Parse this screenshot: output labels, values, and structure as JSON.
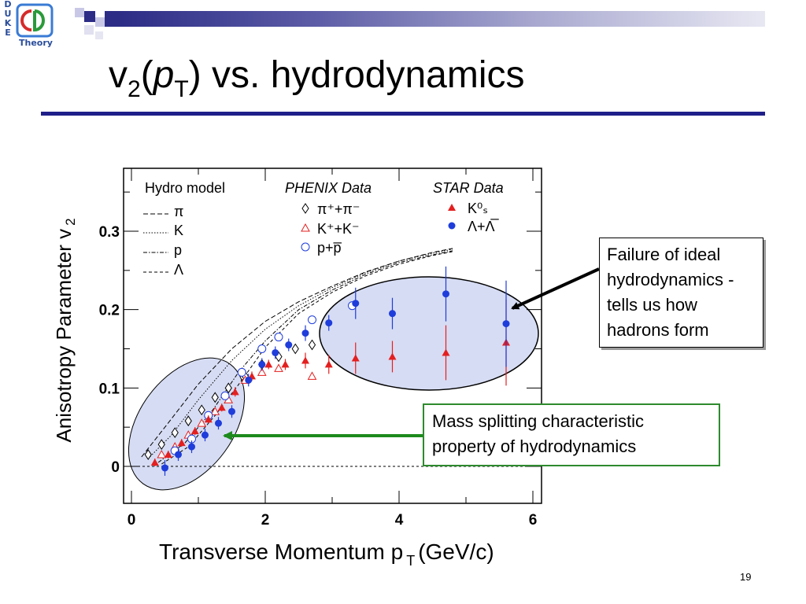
{
  "logo": {
    "letters": [
      "D",
      "U",
      "K",
      "E"
    ],
    "text": "Theory",
    "emblem": "cd-logo-icon"
  },
  "header": {
    "title_main": "v",
    "title_sub": "2",
    "title_rest_open": "(",
    "title_p": "p",
    "title_p_sub": "T",
    "title_rest": ") vs. hydrodynamics",
    "rule_color": "#1f1f8a"
  },
  "chart_data": {
    "type": "scatter",
    "xlabel_main": "Transverse Momentum p",
    "xlabel_sub": "T",
    "xlabel_unit": "(GeV/c)",
    "ylabel_main": "Anisotropy Parameter v",
    "ylabel_sub": "2",
    "xlim": [
      0,
      6.3
    ],
    "ylim": [
      -0.045,
      0.375
    ],
    "x_ticks": [
      0,
      2,
      4,
      6
    ],
    "x_tick_labels": [
      "0",
      "2",
      "4",
      "6"
    ],
    "y_ticks": [
      0,
      0.1,
      0.2,
      0.3
    ],
    "y_tick_labels": [
      "0",
      "0.1",
      "0.2",
      "0.3"
    ],
    "legend": {
      "hydro_title": "Hydro model",
      "hydro_entries": [
        "π",
        "K",
        "p",
        "Λ"
      ],
      "phenix_title": "PHENIX Data",
      "phenix_entries": [
        "π⁺+π⁻",
        "K⁺+K⁻",
        "p+p̅"
      ],
      "star_title": "STAR Data",
      "star_entries": [
        "K⁰ₛ",
        "Λ+Λ̅"
      ]
    },
    "series": [
      {
        "name": "π⁺+π⁻",
        "marker": "diamond-open",
        "x": [
          0.25,
          0.45,
          0.65,
          0.85,
          1.05,
          1.25,
          1.45,
          1.7,
          1.95,
          2.2,
          2.45,
          2.7
        ],
        "y": [
          0.015,
          0.028,
          0.043,
          0.058,
          0.072,
          0.088,
          0.1,
          0.115,
          0.13,
          0.14,
          0.15,
          0.155
        ]
      },
      {
        "name": "K⁺+K⁻",
        "marker": "triangle-open",
        "x": [
          0.45,
          0.65,
          0.85,
          1.05,
          1.25,
          1.45,
          1.7,
          1.95,
          2.2,
          2.7
        ],
        "y": [
          0.015,
          0.025,
          0.04,
          0.055,
          0.07,
          0.085,
          0.11,
          0.12,
          0.125,
          0.115
        ]
      },
      {
        "name": "p+p̅",
        "marker": "circle-open",
        "x": [
          0.65,
          0.9,
          1.15,
          1.4,
          1.65,
          1.95,
          2.2,
          2.7,
          3.3
        ],
        "y": [
          0.02,
          0.035,
          0.065,
          0.09,
          0.12,
          0.15,
          0.165,
          0.187,
          0.205
        ]
      },
      {
        "name": "K⁰ₛ",
        "marker": "triangle-filled",
        "x": [
          0.35,
          0.55,
          0.75,
          0.95,
          1.15,
          1.35,
          1.55,
          1.8,
          2.05,
          2.3,
          2.6,
          2.95,
          3.35,
          3.9,
          4.7,
          5.6
        ],
        "y": [
          0.005,
          0.015,
          0.03,
          0.045,
          0.06,
          0.075,
          0.095,
          0.115,
          0.13,
          0.13,
          0.135,
          0.13,
          0.138,
          0.14,
          0.145,
          0.158
        ]
      },
      {
        "name": "Λ+Λ̅",
        "marker": "circle-filled",
        "x": [
          0.5,
          0.7,
          0.9,
          1.1,
          1.3,
          1.5,
          1.75,
          1.95,
          2.15,
          2.35,
          2.6,
          2.95,
          3.35,
          3.9,
          4.7,
          5.6
        ],
        "y": [
          -0.002,
          0.015,
          0.025,
          0.04,
          0.055,
          0.07,
          0.11,
          0.13,
          0.145,
          0.155,
          0.17,
          0.183,
          0.208,
          0.195,
          0.22,
          0.182
        ],
        "err": [
          0.01,
          0.008,
          0.008,
          0.008,
          0.008,
          0.008,
          0.008,
          0.008,
          0.008,
          0.008,
          0.01,
          0.01,
          0.02,
          0.02,
          0.035,
          0.055
        ]
      }
    ],
    "kshort_err": [
      0.005,
      0.005,
      0.005,
      0.005,
      0.005,
      0.005,
      0.006,
      0.006,
      0.006,
      0.007,
      0.01,
      0.012,
      0.02,
      0.02,
      0.035,
      0.055
    ],
    "hydro_curves": [
      {
        "name": "π",
        "x": [
          0.15,
          0.5,
          1.0,
          1.5,
          2.0,
          2.5,
          3.0,
          3.5,
          4.0,
          4.5,
          4.8
        ],
        "y": [
          0.012,
          0.05,
          0.105,
          0.15,
          0.185,
          0.21,
          0.23,
          0.248,
          0.262,
          0.273,
          0.278
        ]
      },
      {
        "name": "K",
        "x": [
          0.25,
          0.6,
          1.0,
          1.5,
          2.0,
          2.5,
          3.0,
          3.5,
          4.0,
          4.5,
          4.8
        ],
        "y": [
          0.01,
          0.04,
          0.085,
          0.135,
          0.175,
          0.205,
          0.228,
          0.247,
          0.262,
          0.272,
          0.277
        ]
      },
      {
        "name": "p",
        "x": [
          0.4,
          0.8,
          1.2,
          1.6,
          2.0,
          2.5,
          3.0,
          3.5,
          4.0,
          4.5,
          4.8
        ],
        "y": [
          0.005,
          0.03,
          0.07,
          0.12,
          0.16,
          0.2,
          0.225,
          0.245,
          0.26,
          0.27,
          0.275
        ]
      },
      {
        "name": "Λ",
        "x": [
          0.45,
          0.85,
          1.25,
          1.65,
          2.0,
          2.5,
          3.0,
          3.5,
          4.0,
          4.5,
          4.8
        ],
        "y": [
          0.003,
          0.025,
          0.065,
          0.11,
          0.152,
          0.195,
          0.222,
          0.243,
          0.258,
          0.269,
          0.274
        ]
      }
    ],
    "colors": {
      "star": "#e41f1f",
      "star_lambda": "#1f3ddb",
      "ellipse_fill": "#d6dcf3"
    }
  },
  "annotations": {
    "failure_text": "Failure of ideal hydrodynamics - tells us how hadrons form",
    "mass_text": "Mass splitting characteristic property of hydrodynamics",
    "failure_arrow_color": "#000000",
    "mass_arrow_color": "#1d8a1d"
  },
  "page_number": "19"
}
